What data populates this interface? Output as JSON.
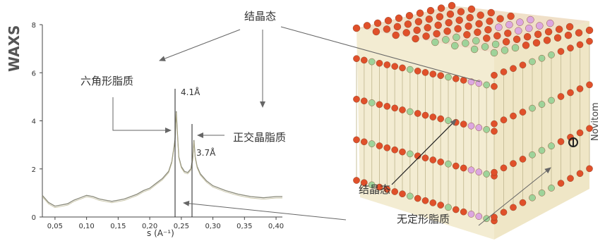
{
  "labels": {
    "crystalline_top": "结晶态",
    "hexagonal_lipid": "六角形脂质",
    "orthorhombic_lipid": "正交晶脂质",
    "crystalline_bottom": "结晶态",
    "amorphous_lipid": "无定形脂质",
    "brand": "Novitom",
    "peak_a": "4.1Å",
    "peak_b": "3.7Å"
  },
  "colors": {
    "headgroup_orange": "#e0502a",
    "headgroup_green": "#9ed39a",
    "headgroup_pink": "#dca7e0",
    "tail": "#c9c09a",
    "curve": "#8a8a7a"
  },
  "chart_data": {
    "type": "line",
    "title": "",
    "ylabel": "WAXS",
    "xlabel": "s (A⁻¹)",
    "xlim": [
      0.03,
      0.41
    ],
    "ylim": [
      0,
      8
    ],
    "xticks": [
      "0,05",
      "0,10",
      "0,15",
      "0,20",
      "0,25",
      "0,30",
      "0,35",
      "0,40"
    ],
    "xtick_values": [
      0.05,
      0.1,
      0.15,
      0.2,
      0.25,
      0.3,
      0.35,
      0.4
    ],
    "yticks": [
      "0",
      "2",
      "4",
      "6",
      "8"
    ],
    "ytick_values": [
      0,
      2,
      4,
      6,
      8
    ],
    "series": [
      {
        "x": [
          0.03,
          0.04,
          0.05,
          0.06,
          0.07,
          0.08,
          0.09,
          0.1,
          0.11,
          0.12,
          0.13,
          0.14,
          0.15,
          0.16,
          0.17,
          0.18,
          0.19,
          0.2,
          0.21,
          0.22,
          0.23,
          0.235,
          0.24,
          0.242,
          0.244,
          0.246,
          0.25,
          0.255,
          0.26,
          0.265,
          0.268,
          0.27,
          0.272,
          0.275,
          0.28,
          0.29,
          0.3,
          0.32,
          0.34,
          0.36,
          0.38,
          0.4,
          0.41
        ],
        "values": [
          0.9,
          0.6,
          0.45,
          0.5,
          0.55,
          0.7,
          0.8,
          0.9,
          0.85,
          0.75,
          0.7,
          0.65,
          0.7,
          0.75,
          0.85,
          0.95,
          1.1,
          1.2,
          1.4,
          1.6,
          1.9,
          2.3,
          3.2,
          4.4,
          3.4,
          2.5,
          2.1,
          1.9,
          1.85,
          2.0,
          2.4,
          3.2,
          2.5,
          2.1,
          1.8,
          1.5,
          1.3,
          1.1,
          0.95,
          0.85,
          0.8,
          0.85,
          0.85
        ]
      }
    ]
  }
}
